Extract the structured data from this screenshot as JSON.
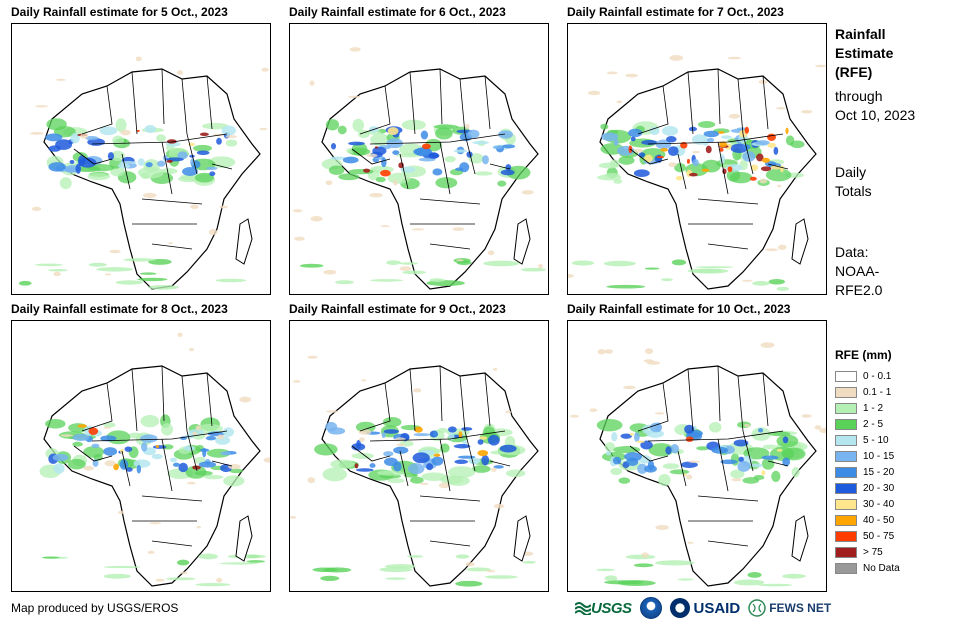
{
  "panels": [
    {
      "title": "Daily Rainfall estimate for 5 Oct., 2023",
      "pattern": "moderate"
    },
    {
      "title": "Daily Rainfall estimate for 6 Oct., 2023",
      "pattern": "moderate"
    },
    {
      "title": "Daily Rainfall estimate for 7 Oct., 2023",
      "pattern": "heavy"
    },
    {
      "title": "Daily Rainfall estimate for 8 Oct., 2023",
      "pattern": "moderate"
    },
    {
      "title": "Daily Rainfall estimate for 9 Oct., 2023",
      "pattern": "moderate"
    },
    {
      "title": "Daily Rainfall estimate for 10 Oct., 2023",
      "pattern": "moderate"
    }
  ],
  "sidebar": {
    "title_lines": [
      "Rainfall",
      "Estimate",
      "(RFE)"
    ],
    "through_lines": [
      "through",
      "Oct 10, 2023"
    ],
    "daily_lines": [
      "Daily",
      "Totals"
    ],
    "data_lines": [
      "Data:",
      "NOAA-",
      "RFE2.0"
    ]
  },
  "legend": {
    "title": "RFE (mm)",
    "items": [
      {
        "label": "0 - 0.1",
        "color": "#ffffff"
      },
      {
        "label": "0.1 - 1",
        "color": "#f0dcc0"
      },
      {
        "label": "1 - 2",
        "color": "#b4f0b4"
      },
      {
        "label": "2 - 5",
        "color": "#5ad25a"
      },
      {
        "label": "5 - 10",
        "color": "#b4e6f0"
      },
      {
        "label": "10 - 15",
        "color": "#78b4f0"
      },
      {
        "label": "15 - 20",
        "color": "#3c8ce6"
      },
      {
        "label": "20 - 30",
        "color": "#1e5adc"
      },
      {
        "label": "30 - 40",
        "color": "#ffe68c"
      },
      {
        "label": "40 - 50",
        "color": "#ffa500"
      },
      {
        "label": "50 - 75",
        "color": "#ff3c00"
      },
      {
        "label": "> 75",
        "color": "#a01e1e"
      },
      {
        "label": "No Data",
        "color": "#999999"
      }
    ]
  },
  "footer": {
    "credit": "Map produced by USGS/EROS",
    "usgs": "USGS",
    "usaid": "USAID",
    "fews": "FEWS NET"
  }
}
